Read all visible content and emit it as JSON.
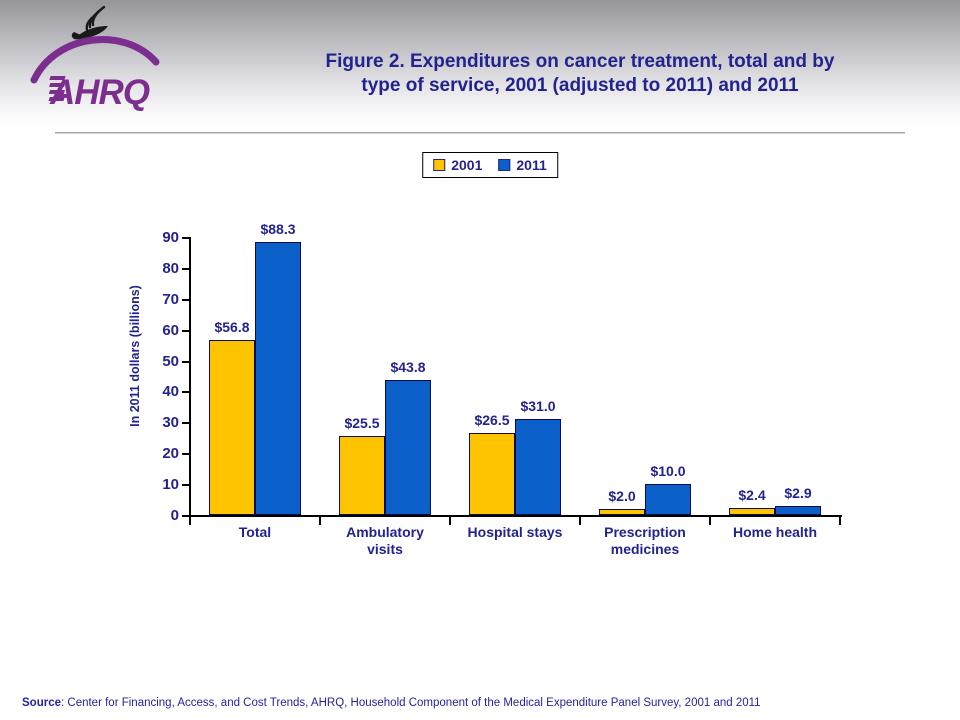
{
  "header": {
    "title": "Figure 2. Expenditures on cancer treatment, total and by\ntype of service, 2001 (adjusted to 2011) and 2011",
    "logo_text": "AHRQ"
  },
  "colors": {
    "ink": "#23238F",
    "axis": "#000000",
    "bar_border": "#0A0A50",
    "divider_gray": "#A4A4AC",
    "logo_purple": "#7B2E8E",
    "eagle_black": "#1A1A1A",
    "legend_border": "#000000",
    "header_gradient_top": "#95959A"
  },
  "chart_data": {
    "type": "bar",
    "title": "Expenditures on cancer treatment, total and by type of service, 2001 (adjusted to 2011) and 2011",
    "categories": [
      "Total",
      "Ambulatory visits",
      "Hospital stays",
      "Prescription medicines",
      "Home health"
    ],
    "series": [
      {
        "name": "2001",
        "color": "#FFC400",
        "values": [
          56.8,
          25.5,
          26.5,
          2.0,
          2.4
        ],
        "labels": [
          "$56.8",
          "$25.5",
          "$26.5",
          "$2.0",
          "$2.4"
        ]
      },
      {
        "name": "2011",
        "color": "#0B5FC8",
        "values": [
          88.3,
          43.8,
          31.0,
          10.0,
          2.9
        ],
        "labels": [
          "$88.3",
          "$43.8",
          "$31.0",
          "$10.0",
          "$2.9"
        ]
      }
    ],
    "xlabel": "",
    "ylabel": "In 2011 dollars (billions)",
    "ylim": [
      0,
      90
    ],
    "ytick_step": 10,
    "grid": false,
    "legend_position": "top-center"
  },
  "source": {
    "label": "Source",
    "text": ": Center for Financing, Access, and Cost Trends, AHRQ, Household Component of the Medical Expenditure Panel Survey, 2001 and 2011"
  }
}
